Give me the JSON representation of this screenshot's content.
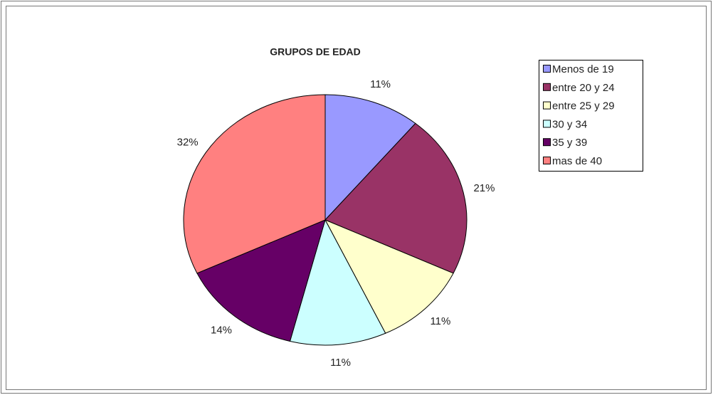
{
  "chart_data": {
    "type": "pie",
    "title": "GRUPOS DE EDAD",
    "categories": [
      "Menos de 19",
      "entre 20 y 24",
      "entre 25 y 29",
      "30 y 34",
      "35 y 39",
      "mas de 40"
    ],
    "values": [
      11,
      21,
      11,
      11,
      14,
      32
    ],
    "value_labels": [
      "11%",
      "21%",
      "11%",
      "11%",
      "14%",
      "32%"
    ],
    "colors": [
      "#9999ff",
      "#993366",
      "#ffffcc",
      "#ccffff",
      "#660066",
      "#ff8080"
    ]
  }
}
